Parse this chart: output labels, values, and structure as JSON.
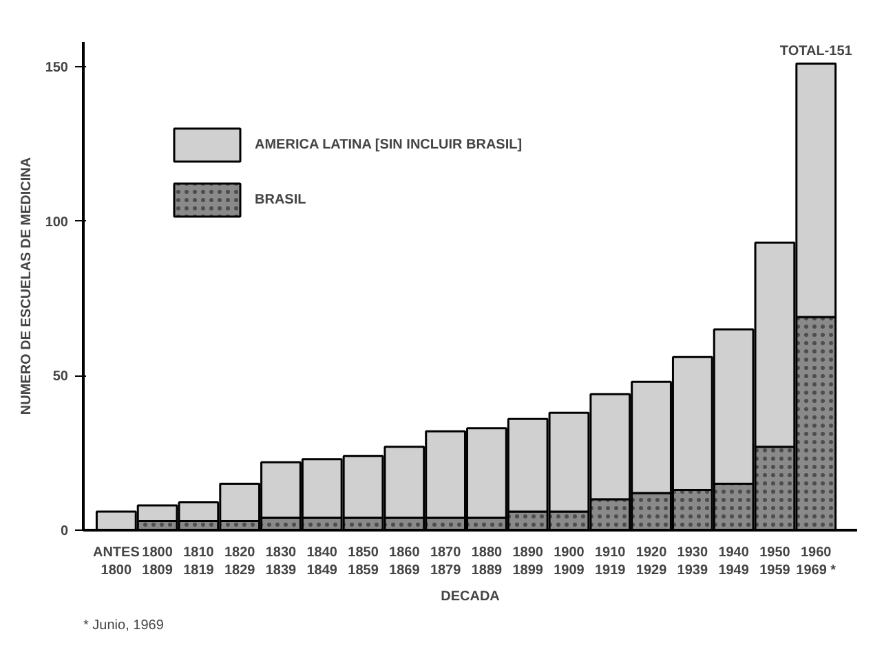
{
  "chart_data": {
    "type": "bar",
    "stacked": true,
    "xlabel": "DECADA",
    "ylabel": "NUMERO DE ESCUELAS DE MEDICINA",
    "categories": [
      "ANTES\n1800",
      "1800\n1809",
      "1810\n1819",
      "1820\n1829",
      "1830\n1839",
      "1840\n1849",
      "1850\n1859",
      "1860\n1869",
      "1870\n1879",
      "1880\n1889",
      "1890\n1899",
      "1900\n1909",
      "1910\n1919",
      "1920\n1929",
      "1930\n1939",
      "1940\n1949",
      "1950\n1959",
      "1960\n1969 *"
    ],
    "series": [
      {
        "name": "BRASIL",
        "color": "#8a8a8a",
        "values": [
          0,
          3,
          3,
          3,
          4,
          4,
          4,
          4,
          4,
          4,
          6,
          6,
          10,
          12,
          13,
          15,
          27,
          69
        ]
      },
      {
        "name": "AMERICA LATINA [SIN INCLUIR BRASIL]",
        "color": "#d0d0d0",
        "values": [
          6,
          5,
          6,
          12,
          18,
          19,
          20,
          23,
          28,
          29,
          30,
          32,
          34,
          36,
          43,
          50,
          66,
          82
        ]
      }
    ],
    "ylim": [
      0,
      158
    ],
    "yticks": [
      0,
      50,
      100,
      150
    ],
    "grid": false,
    "legend": "top left",
    "annotations": [
      {
        "text": "TOTAL-151",
        "x": "1960\n1969 *",
        "y": 151
      },
      "* Junio, 1969"
    ]
  }
}
